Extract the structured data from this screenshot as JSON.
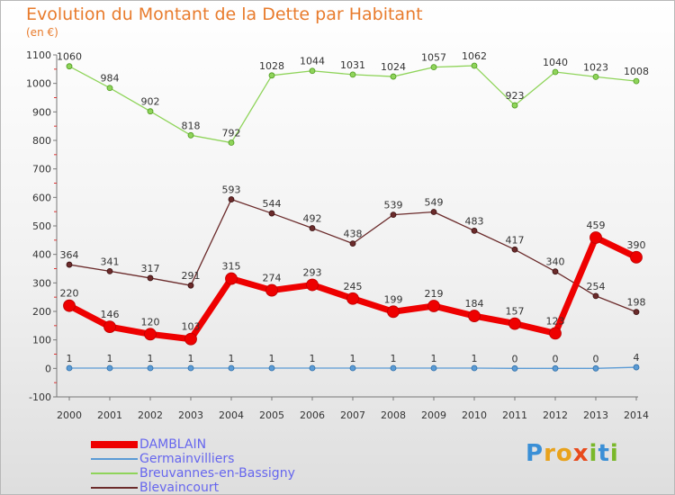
{
  "chart_data": {
    "type": "line",
    "title": "Evolution du Montant de la Dette par Habitant",
    "subtitle": "(en €)",
    "xlabel": "",
    "ylabel": "",
    "x": [
      "2000",
      "2001",
      "2002",
      "2003",
      "2004",
      "2005",
      "2006",
      "2007",
      "2008",
      "2009",
      "2010",
      "2011",
      "2012",
      "2013",
      "2014"
    ],
    "ylim": [
      -100,
      1100
    ],
    "yticks": [
      -100,
      0,
      100,
      200,
      300,
      400,
      500,
      600,
      700,
      800,
      900,
      1000,
      1100
    ],
    "grid": false,
    "legend_position": "bottom-left",
    "series": [
      {
        "name": "DAMBLAIN",
        "color": "#ee0000",
        "values": [
          220,
          146,
          120,
          103,
          315,
          274,
          293,
          245,
          199,
          219,
          184,
          157,
          123,
          459,
          390
        ]
      },
      {
        "name": "Germainvilliers",
        "color": "#5b9bd5",
        "values": [
          1,
          1,
          1,
          1,
          1,
          1,
          1,
          1,
          1,
          1,
          1,
          0,
          0,
          0,
          4
        ]
      },
      {
        "name": "Breuvannes-en-Bassigny",
        "color": "#8fd45a",
        "values": [
          1060,
          984,
          902,
          818,
          792,
          1028,
          1044,
          1031,
          1024,
          1057,
          1062,
          923,
          1040,
          1023,
          1008
        ]
      },
      {
        "name": "Blevaincourt",
        "color": "#6b2b2b",
        "values": [
          364,
          341,
          317,
          291,
          593,
          544,
          492,
          438,
          539,
          549,
          483,
          417,
          340,
          254,
          198
        ]
      }
    ]
  },
  "logo": {
    "text": "Proxiti"
  }
}
